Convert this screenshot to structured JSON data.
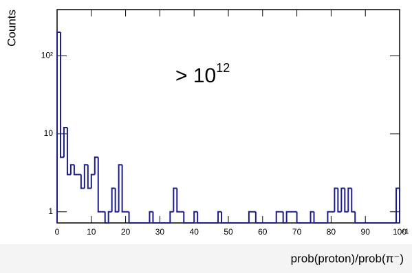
{
  "chart_data": {
    "type": "histogram",
    "bins": [
      0,
      1,
      2,
      3,
      4,
      5,
      6,
      7,
      8,
      9,
      10,
      11,
      12,
      13,
      14,
      15,
      16,
      17,
      18,
      19,
      20,
      21,
      22,
      23,
      24,
      25,
      26,
      27,
      28,
      29,
      30,
      31,
      32,
      33,
      34,
      35,
      36,
      37,
      38,
      39,
      40,
      41,
      42,
      43,
      44,
      45,
      46,
      47,
      48,
      49,
      50,
      51,
      52,
      53,
      54,
      55,
      56,
      57,
      58,
      59,
      60,
      61,
      62,
      63,
      64,
      65,
      66,
      67,
      68,
      69,
      70,
      71,
      72,
      73,
      74,
      75,
      76,
      77,
      78,
      79,
      80,
      81,
      82,
      83,
      84,
      85,
      86,
      87,
      88,
      89,
      90,
      91,
      92,
      93,
      94,
      95,
      96,
      97,
      98,
      99,
      100
    ],
    "counts": [
      200,
      5,
      12,
      3,
      4,
      3,
      3,
      2,
      4,
      2,
      3,
      5,
      1,
      1,
      0,
      1,
      2,
      1,
      4,
      1,
      1,
      0,
      0,
      0,
      0,
      0,
      0,
      1,
      0,
      0,
      0,
      0,
      0,
      1,
      2,
      1,
      1,
      0,
      0,
      0,
      1,
      0,
      0,
      0,
      0,
      0,
      0,
      1,
      0,
      0,
      0,
      0,
      0,
      0,
      0,
      0,
      1,
      1,
      0,
      0,
      0,
      0,
      0,
      0,
      1,
      1,
      0,
      1,
      1,
      1,
      0,
      0,
      0,
      0,
      1,
      0,
      0,
      0,
      0,
      1,
      1,
      2,
      1,
      2,
      1,
      2,
      1,
      0,
      0,
      0,
      0,
      0,
      0,
      0,
      0,
      0,
      0,
      0,
      0,
      2
    ],
    "color": "#1c1c8f",
    "xlim": [
      0,
      100
    ],
    "xticks": [
      0,
      10,
      20,
      30,
      40,
      50,
      60,
      70,
      80,
      90,
      100
    ],
    "ylim": [
      0.72,
      390
    ],
    "log_y": true,
    "yticks": [
      1,
      10,
      {
        "value": 100,
        "label": "10²"
      }
    ],
    "x_label": "prob(proton)/prob(π⁻)",
    "y_label": "Counts",
    "x_multiplier": "×1",
    "annotation": {
      "text": "> 10",
      "superscript": "12",
      "color": "#2222dd"
    }
  }
}
